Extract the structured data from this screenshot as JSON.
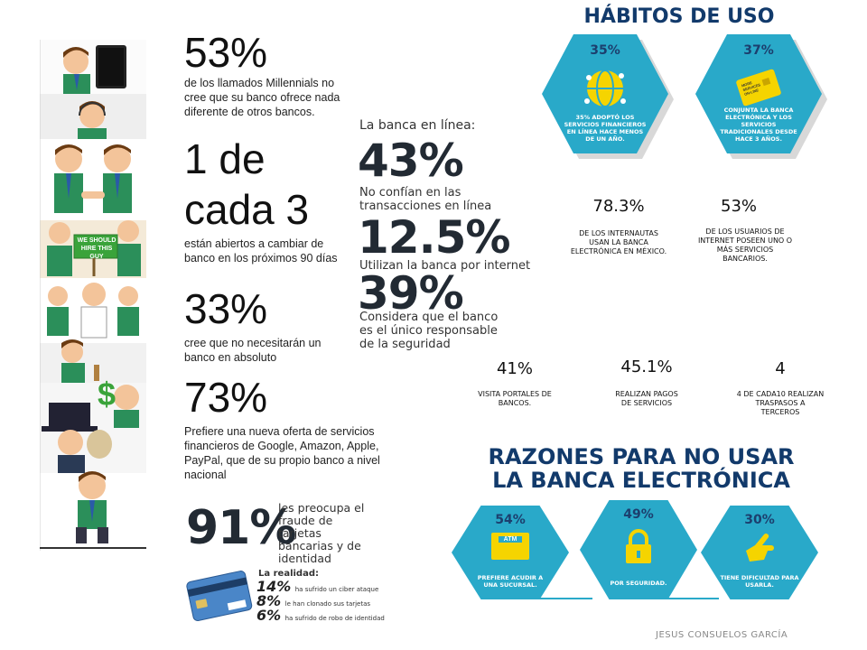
{
  "left_stats": [
    {
      "value": "53%",
      "text": "de los llamados Millennials no cree que su banco ofrece nada diferente de otros bancos."
    },
    {
      "value_line1": "1 de",
      "value_line2": "cada 3",
      "text": "están abiertos a cambiar de banco en los próximos 90 días"
    },
    {
      "value": "33%",
      "text": "cree que no necesitarán un banco en absoluto"
    },
    {
      "value": "73%",
      "text": "Prefiere una nueva oferta de servicios financieros de Google, Amazon, Apple, PayPal, que de su propio banco a nivel nacional"
    }
  ],
  "cartoon_signs": {
    "sign_text": "WE SHOULD HIRE THIS GUY",
    "dollar": "$"
  },
  "online_banking": {
    "heading": "La banca en línea:",
    "items": [
      {
        "value": "43%",
        "text": "No confían en las transacciones en línea"
      },
      {
        "value": "12.5%",
        "text": "Utilizan la banca por internet"
      },
      {
        "value": "39%",
        "text": "Considera que el banco es el único responsable de la seguridad"
      }
    ]
  },
  "fraud": {
    "value": "91%",
    "text": "les preocupa el fraude de tarjetas bancarias y de identidad",
    "reality_label": "La realidad:",
    "items": [
      {
        "value": "14%",
        "text": "ha sufrido un ciber ataque"
      },
      {
        "value": "8%",
        "text": "le han clonado sus tarjetas"
      },
      {
        "value": "6%",
        "text": "ha sufrido de robo de identidad"
      }
    ]
  },
  "habits": {
    "title": "HÁBITOS DE USO",
    "hexes": [
      {
        "value": "35%",
        "text": "35% ADOPTÓ LOS SERVICIOS FINANCIEROS EN LÍNEA HACE MENOS DE UN AÑO.",
        "icon": "globe-network-icon"
      },
      {
        "value": "37%",
        "text": "CONJUNTA LA BANCA ELECTRÓNICA Y LOS SERVICIOS TRADICIONALES DESDE HACE 3 AÑOS.",
        "icon": "credit-card-icon"
      }
    ],
    "stats": [
      {
        "value": "78.3%",
        "text": "DE LOS INTERNAUTAS USAN LA BANCA ELECTRÓNICA EN MÉXICO."
      },
      {
        "value": "53%",
        "text": "DE LOS USUARIOS DE INTERNET POSEEN UNO O MÁS SERVICIOS BANCARIOS."
      },
      {
        "value": "41%",
        "text": "VISITA PORTALES DE BANCOS."
      },
      {
        "value": "45.1%",
        "text": "REALIZAN PAGOS DE SERVICIOS"
      },
      {
        "value": "4",
        "text": "4 DE CADA10 REALIZAN TRASPASOS A TERCEROS"
      }
    ],
    "card_text": "MORE SERVICES ON-LINE"
  },
  "reasons": {
    "title_line1": "RAZONES PARA NO USAR",
    "title_line2": "LA BANCA ELECTRÓNICA",
    "hexes": [
      {
        "value": "54%",
        "text": "PREFIERE ACUDIR A UNA SUCURSAL.",
        "icon": "atm-icon",
        "icon_label": "ATM"
      },
      {
        "value": "49%",
        "text": "POR SEGURIDAD.",
        "icon": "padlock-icon"
      },
      {
        "value": "30%",
        "text": "TIENE DIFICULTAD PARA USARLA.",
        "icon": "pointing-hand-icon"
      }
    ]
  },
  "footer": "JESUS CONSUELOS GARCÍA",
  "colors": {
    "hex_blue": "#29a9c9",
    "title_navy": "#123a6b",
    "green_sign": "#3aa33a"
  }
}
